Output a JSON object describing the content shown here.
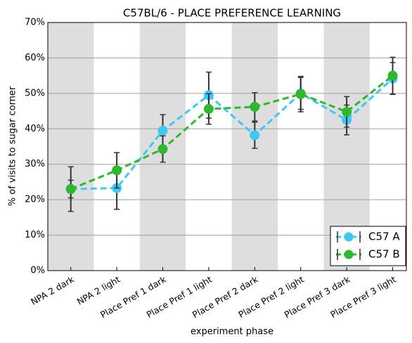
{
  "chart_data": {
    "type": "line",
    "title": "C57BL/6 - PLACE PREFERENCE LEARNING",
    "x_label": "experiment phase",
    "y_label": "% of visits to sugar corner",
    "categories": [
      "NPA 2 dark",
      "NPA 2 light",
      "Place Pref 1 dark",
      "Place Pref 1 light",
      "Place Pref 2 dark",
      "Place Pref 2 light",
      "Place Pref 3 dark",
      "Place Pref 3 light"
    ],
    "series": [
      {
        "name": "C57 A",
        "color": "#3ec9f5",
        "values": [
          23,
          23.3,
          39.5,
          49.5,
          38.2,
          50,
          42.5,
          54.2
        ],
        "errors": [
          6.3,
          6,
          4.5,
          6.5,
          3.7,
          4.5,
          4.2,
          4.5
        ]
      },
      {
        "name": "C57 B",
        "color": "#2db82d",
        "values": [
          23,
          28.3,
          34.3,
          45.6,
          46.2,
          49.8,
          44.8,
          55
        ],
        "errors": [
          2.5,
          5,
          3.7,
          4.3,
          4,
          5,
          4.3,
          5.2
        ]
      }
    ],
    "ylim": [
      0,
      70
    ],
    "yticks": [
      {
        "value": 0,
        "label": "0%"
      },
      {
        "value": 10,
        "label": "10%"
      },
      {
        "value": 20,
        "label": "20%"
      },
      {
        "value": 30,
        "label": "30%"
      },
      {
        "value": 40,
        "label": "40%"
      },
      {
        "value": 50,
        "label": "50%"
      },
      {
        "value": 60,
        "label": "60%"
      },
      {
        "value": 70,
        "label": "70%"
      }
    ],
    "grid": true,
    "legend": "lower right"
  }
}
